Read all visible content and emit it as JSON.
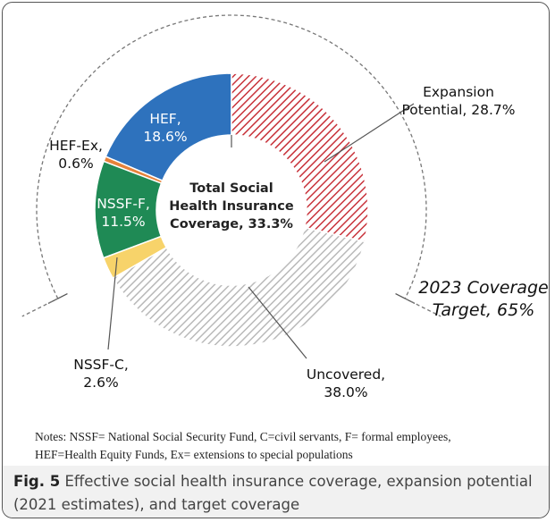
{
  "chart_data": {
    "type": "donut",
    "segments": [
      {
        "label": "HEF,",
        "value_label": "18.6%",
        "value": 18.6,
        "color": "#2e72bd",
        "pattern": "solid"
      },
      {
        "label": "HEF-Ex,",
        "value_label": "0.6%",
        "value": 0.6,
        "color": "#e6823a",
        "pattern": "solid"
      },
      {
        "label": "NSSF-F,",
        "value_label": "11.5%",
        "value": 11.5,
        "color": "#1f8a55",
        "pattern": "solid"
      },
      {
        "label": "NSSF-C,",
        "value_label": "2.6%",
        "value": 2.6,
        "color": "#f7d36a",
        "pattern": "solid"
      },
      {
        "label": "Uncovered,",
        "value_label": "38.0%",
        "value": 38.0,
        "color": "#bdbdbd",
        "pattern": "hatch"
      },
      {
        "label": "Expansion",
        "value_label": "Potential, 28.7%",
        "value": 28.7,
        "color": "#c8323a",
        "pattern": "hatch"
      }
    ],
    "center_text": [
      "Total Social",
      "Health Insurance",
      "Coverage, 33.3%"
    ],
    "target_arc": {
      "line1": "2023 Coverage",
      "line2": "Target, 65%",
      "value": 65
    }
  },
  "notes": {
    "line1": "Notes: NSSF= National Social Security Fund, C=civil servants, F= formal employees,",
    "line2": "HEF=Health Equity Funds, Ex= extensions to special populations"
  },
  "caption": {
    "label": "Fig. 5",
    "text": " Effective social health insurance coverage, expansion potential (2021 estimates), and target coverage"
  }
}
